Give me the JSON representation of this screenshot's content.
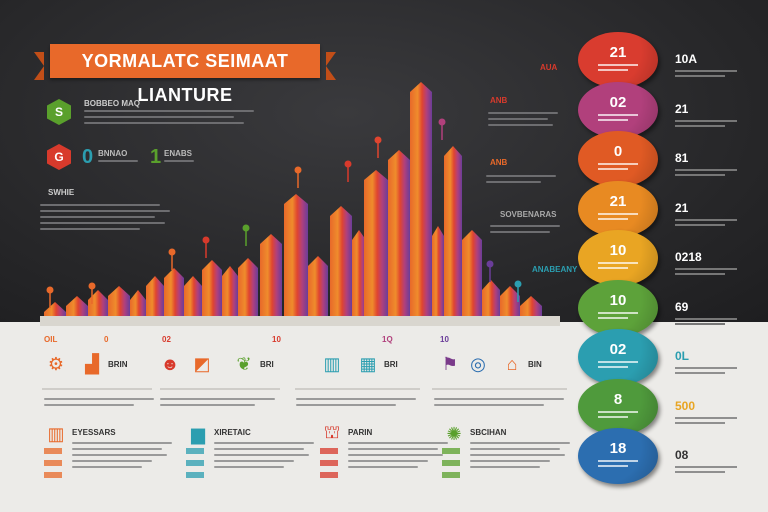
{
  "title": "YORMALATC SEIMAAT LIANTURE",
  "badges": [
    {
      "label": "S",
      "color": "#5aa02c"
    },
    {
      "label": "G",
      "color": "#d83a2c"
    }
  ],
  "left_texts": {
    "badge1_heading": "BOBBEO MAQ",
    "badge2_big_a": "0",
    "badge2_big_b": "1",
    "badge2_label_a": "BNNAO",
    "badge2_label_b": "ENABS",
    "section_label": "SWHIE"
  },
  "chart_axis_labels": [
    "OIL",
    "0",
    "02",
    "10",
    "1Q",
    "10"
  ],
  "chart_floating_labels": [
    "AUA",
    "ANB",
    "ANB",
    "SOVBENARAS",
    "ANABEANY"
  ],
  "pills": [
    {
      "value": "21",
      "color": "#d93c2f",
      "right_value": "10A"
    },
    {
      "value": "02",
      "color": "#b1407c",
      "right_value": "21"
    },
    {
      "value": "0",
      "color": "#e05a24",
      "right_value": "81"
    },
    {
      "value": "21",
      "color": "#e88a22",
      "right_value": "21"
    },
    {
      "value": "10",
      "color": "#e9a523",
      "right_value": "0218"
    },
    {
      "value": "10",
      "color": "#5da23a",
      "right_value": "69"
    },
    {
      "value": "02",
      "color": "#2b9eb0",
      "right_value": "0L"
    },
    {
      "value": "8",
      "color": "#4f9a3c",
      "right_value": "500"
    },
    {
      "value": "18",
      "color": "#2c6eb0",
      "right_value": "08"
    }
  ],
  "bottom_row1": [
    {
      "icon": "gear-icon",
      "label": "",
      "color": "#e8692a"
    },
    {
      "icon": "chart-icon",
      "label": "BRIN",
      "color": "#e8692a"
    },
    {
      "icon": "person-icon",
      "label": "",
      "color": "#d83a2c"
    },
    {
      "icon": "graph-icon",
      "label": "",
      "color": "#e8692a"
    },
    {
      "icon": "leaf-icon",
      "label": "BRI",
      "color": "#5aa02c"
    },
    {
      "icon": "building-icon",
      "label": "",
      "color": "#2b9eb0"
    },
    {
      "icon": "grid-icon",
      "label": "BRI",
      "color": "#2b9eb0"
    },
    {
      "icon": "flag-icon",
      "label": "",
      "color": "#7a3a8a"
    },
    {
      "icon": "target-icon",
      "label": "",
      "color": "#2c6eb0"
    },
    {
      "icon": "house-icon",
      "label": "BIN",
      "color": "#e8692a"
    }
  ],
  "bottom_row2": [
    {
      "icon": "building-icon",
      "heading": "EYESSARS",
      "color": "#e8692a"
    },
    {
      "icon": "bars-icon",
      "heading": "XIRETAIC",
      "color": "#2b9eb0"
    },
    {
      "icon": "factory-icon",
      "heading": "PARIN",
      "color": "#d83a2c"
    },
    {
      "icon": "cycle-icon",
      "heading": "SBCIHAN",
      "color": "#5aa02c"
    }
  ],
  "colors": {
    "accent": "#e8692a",
    "dark_bg": "#2a2a2c",
    "light_bg": "#ecebe8"
  }
}
